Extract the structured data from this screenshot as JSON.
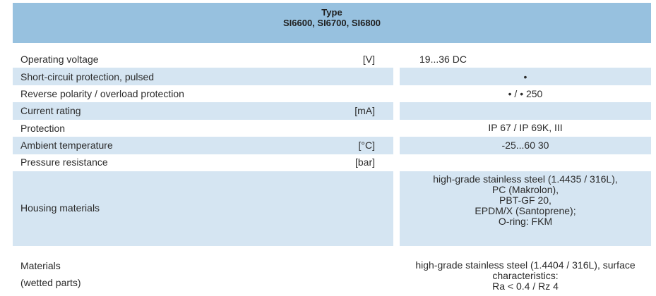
{
  "header": {
    "line1": "Type",
    "line2": "SI6600, SI6700, SI6800"
  },
  "rows": [
    {
      "label": "Operating voltage",
      "unit": "[V]",
      "value": "19...36 DC"
    },
    {
      "label": "Short-circuit protection, pulsed",
      "unit": "",
      "value": "•"
    },
    {
      "label": "Reverse polarity / overload protection",
      "unit": "",
      "value": "• / • 250"
    },
    {
      "label": "Current rating",
      "unit": "[mA]",
      "value": ""
    },
    {
      "label": "Protection",
      "unit": "",
      "value": "IP 67 / IP 69K, III"
    },
    {
      "label": "Ambient temperature",
      "unit": "[°C]",
      "value": "-25...60 30"
    },
    {
      "label": "Pressure resistance",
      "unit": "[bar]",
      "value": ""
    },
    {
      "label": "Housing materials",
      "unit": "",
      "value_lines": [
        "high-grade stainless steel (1.4435 / 316L),",
        "PC (Makrolon),",
        "PBT-GF 20,",
        "EPDM/X (Santoprene);",
        "O-ring: FKM"
      ]
    },
    {
      "label_lines": [
        "Materials",
        "(wetted parts)"
      ],
      "unit": "",
      "value_lines": [
        "high-grade stainless steel (1.4404 / 316L), surface",
        "characteristics:",
        "Ra < 0.4 / Rz 4"
      ]
    }
  ]
}
